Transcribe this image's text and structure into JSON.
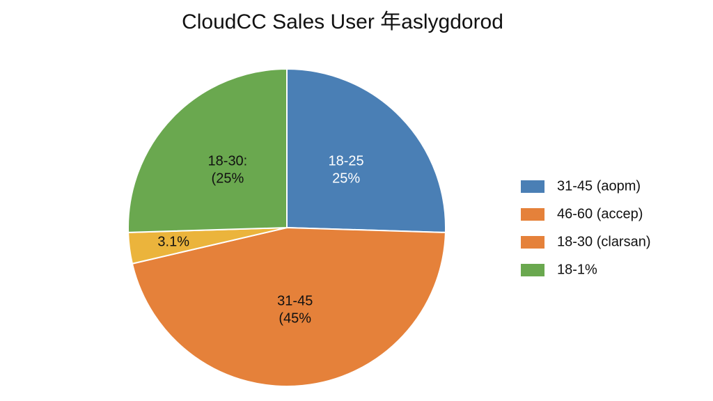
{
  "chart_data": {
    "type": "pie",
    "title": "CloudCC Sales User 年aslygdorod",
    "slices": [
      {
        "name": "18-25",
        "value_label": "25%",
        "value": 25,
        "color": "#4a7fb5",
        "text_color": "#ffffff"
      },
      {
        "name": "31-45",
        "value_label": "(45%",
        "value": 45,
        "color": "#e5813a",
        "text_color": "#111111"
      },
      {
        "value_label": "3.1%",
        "value": 3.1,
        "color": "#ebb43c",
        "text_color": "#111111"
      },
      {
        "name": "18-30:",
        "value_label": "(25%",
        "value": 25,
        "color": "#6aa84f",
        "text_color": "#111111"
      }
    ],
    "legend": [
      {
        "label": "31-45 (aopm)",
        "color": "#4a7fb5"
      },
      {
        "label": "46-60 (accep)",
        "color": "#e5813a"
      },
      {
        "label": "18-30 (clarsan)",
        "color": "#e5813a"
      },
      {
        "label": "18-1%",
        "color": "#6aa84f"
      }
    ]
  }
}
